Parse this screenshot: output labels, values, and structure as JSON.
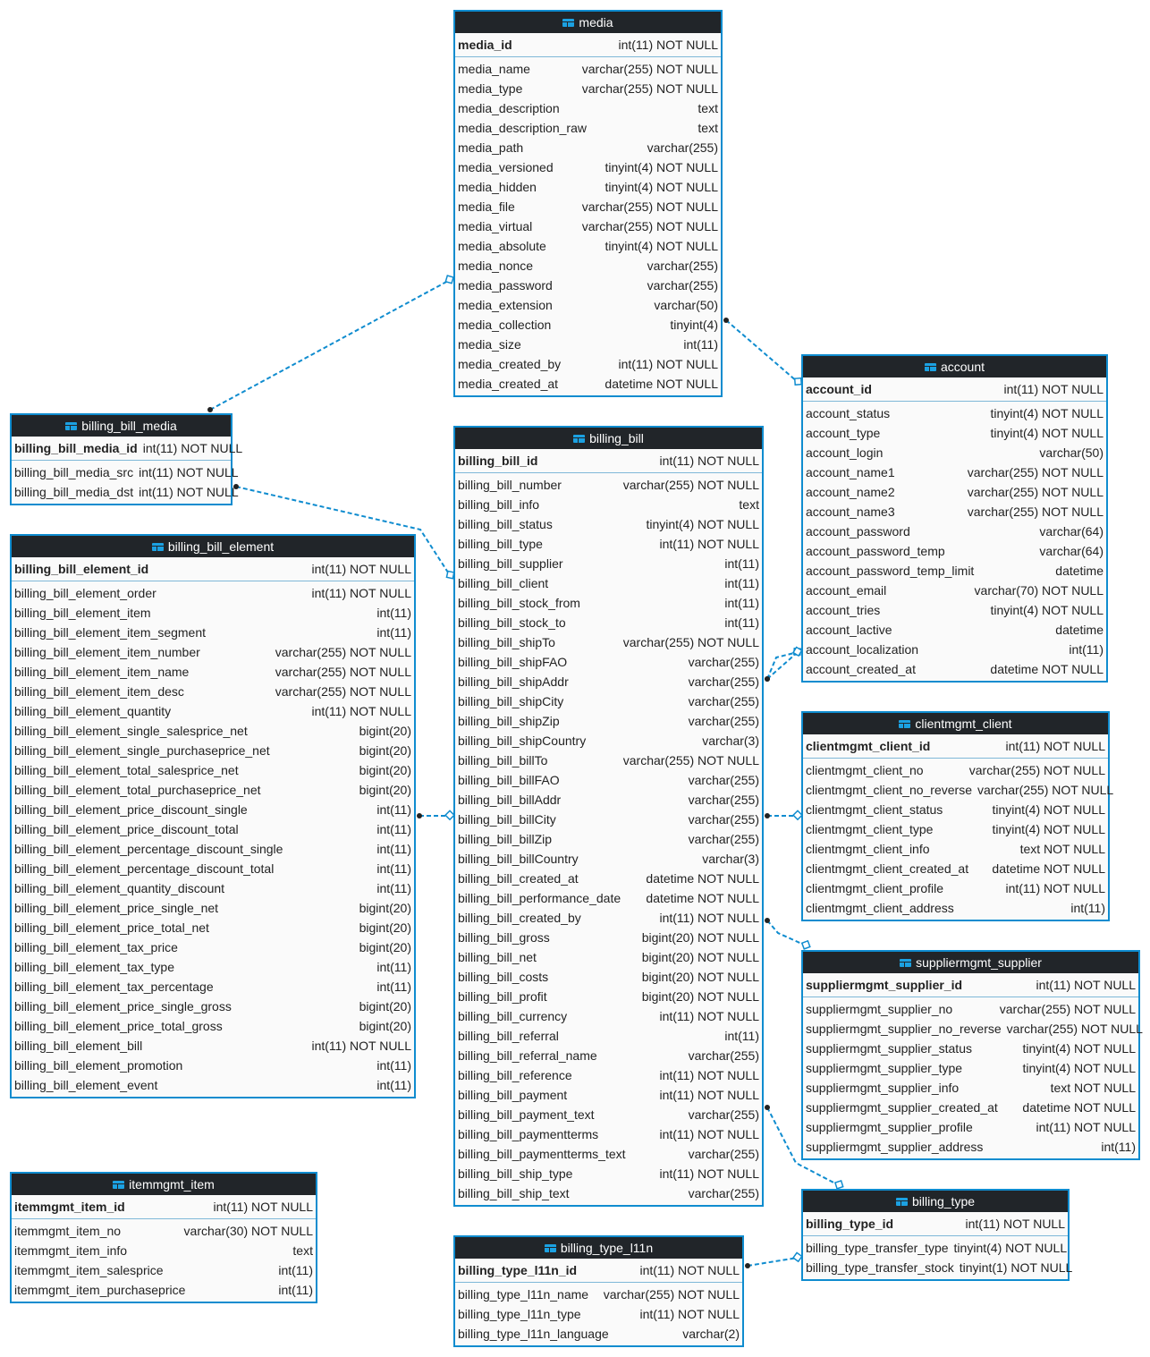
{
  "colors": {
    "header": "#212529",
    "border": "#0f8ccf",
    "link": "#0f8ccf",
    "body": "#fafafa"
  },
  "table_icon": "table-icon",
  "tables": [
    {
      "id": "media",
      "name": "media",
      "pk": [
        "media_id",
        "int(11) NOT NULL"
      ],
      "rows": [
        [
          "media_name",
          "varchar(255) NOT NULL"
        ],
        [
          "media_type",
          "varchar(255) NOT NULL"
        ],
        [
          "media_description",
          "text"
        ],
        [
          "media_description_raw",
          "text"
        ],
        [
          "media_path",
          "varchar(255)"
        ],
        [
          "media_versioned",
          "tinyint(4) NOT NULL"
        ],
        [
          "media_hidden",
          "tinyint(4) NOT NULL"
        ],
        [
          "media_file",
          "varchar(255) NOT NULL"
        ],
        [
          "media_virtual",
          "varchar(255) NOT NULL"
        ],
        [
          "media_absolute",
          "tinyint(4) NOT NULL"
        ],
        [
          "media_nonce",
          "varchar(255)"
        ],
        [
          "media_password",
          "varchar(255)"
        ],
        [
          "media_extension",
          "varchar(50)"
        ],
        [
          "media_collection",
          "tinyint(4)"
        ],
        [
          "media_size",
          "int(11)"
        ],
        [
          "media_created_by",
          "int(11) NOT NULL"
        ],
        [
          "media_created_at",
          "datetime NOT NULL"
        ]
      ]
    },
    {
      "id": "billing_bill_media",
      "name": "billing_bill_media",
      "pk": [
        "billing_bill_media_id",
        "int(11) NOT NULL"
      ],
      "rows": [
        [
          "billing_bill_media_src",
          "int(11) NOT NULL"
        ],
        [
          "billing_bill_media_dst",
          "int(11) NOT NULL"
        ]
      ]
    },
    {
      "id": "billing_bill_element",
      "name": "billing_bill_element",
      "pk": [
        "billing_bill_element_id",
        "int(11) NOT NULL"
      ],
      "rows": [
        [
          "billing_bill_element_order",
          "int(11) NOT NULL"
        ],
        [
          "billing_bill_element_item",
          "int(11)"
        ],
        [
          "billing_bill_element_item_segment",
          "int(11)"
        ],
        [
          "billing_bill_element_item_number",
          "varchar(255) NOT NULL"
        ],
        [
          "billing_bill_element_item_name",
          "varchar(255) NOT NULL"
        ],
        [
          "billing_bill_element_item_desc",
          "varchar(255) NOT NULL"
        ],
        [
          "billing_bill_element_quantity",
          "int(11) NOT NULL"
        ],
        [
          "billing_bill_element_single_salesprice_net",
          "bigint(20)"
        ],
        [
          "billing_bill_element_single_purchaseprice_net",
          "bigint(20)"
        ],
        [
          "billing_bill_element_total_salesprice_net",
          "bigint(20)"
        ],
        [
          "billing_bill_element_total_purchaseprice_net",
          "bigint(20)"
        ],
        [
          "billing_bill_element_price_discount_single",
          "int(11)"
        ],
        [
          "billing_bill_element_price_discount_total",
          "int(11)"
        ],
        [
          "billing_bill_element_percentage_discount_single",
          "int(11)"
        ],
        [
          "billing_bill_element_percentage_discount_total",
          "int(11)"
        ],
        [
          "billing_bill_element_quantity_discount",
          "int(11)"
        ],
        [
          "billing_bill_element_price_single_net",
          "bigint(20)"
        ],
        [
          "billing_bill_element_price_total_net",
          "bigint(20)"
        ],
        [
          "billing_bill_element_tax_price",
          "bigint(20)"
        ],
        [
          "billing_bill_element_tax_type",
          "int(11)"
        ],
        [
          "billing_bill_element_tax_percentage",
          "int(11)"
        ],
        [
          "billing_bill_element_price_single_gross",
          "bigint(20)"
        ],
        [
          "billing_bill_element_price_total_gross",
          "bigint(20)"
        ],
        [
          "billing_bill_element_bill",
          "int(11) NOT NULL"
        ],
        [
          "billing_bill_element_promotion",
          "int(11)"
        ],
        [
          "billing_bill_element_event",
          "int(11)"
        ]
      ]
    },
    {
      "id": "itemmgmt_item",
      "name": "itemmgmt_item",
      "pk": [
        "itemmgmt_item_id",
        "int(11) NOT NULL"
      ],
      "rows": [
        [
          "itemmgmt_item_no",
          "varchar(30) NOT NULL"
        ],
        [
          "itemmgmt_item_info",
          "text"
        ],
        [
          "itemmgmt_item_salesprice",
          "int(11)"
        ],
        [
          "itemmgmt_item_purchaseprice",
          "int(11)"
        ]
      ]
    },
    {
      "id": "billing_bill",
      "name": "billing_bill",
      "pk": [
        "billing_bill_id",
        "int(11) NOT NULL"
      ],
      "rows": [
        [
          "billing_bill_number",
          "varchar(255) NOT NULL"
        ],
        [
          "billing_bill_info",
          "text"
        ],
        [
          "billing_bill_status",
          "tinyint(4) NOT NULL"
        ],
        [
          "billing_bill_type",
          "int(11) NOT NULL"
        ],
        [
          "billing_bill_supplier",
          "int(11)"
        ],
        [
          "billing_bill_client",
          "int(11)"
        ],
        [
          "billing_bill_stock_from",
          "int(11)"
        ],
        [
          "billing_bill_stock_to",
          "int(11)"
        ],
        [
          "billing_bill_shipTo",
          "varchar(255) NOT NULL"
        ],
        [
          "billing_bill_shipFAO",
          "varchar(255)"
        ],
        [
          "billing_bill_shipAddr",
          "varchar(255)"
        ],
        [
          "billing_bill_shipCity",
          "varchar(255)"
        ],
        [
          "billing_bill_shipZip",
          "varchar(255)"
        ],
        [
          "billing_bill_shipCountry",
          "varchar(3)"
        ],
        [
          "billing_bill_billTo",
          "varchar(255) NOT NULL"
        ],
        [
          "billing_bill_billFAO",
          "varchar(255)"
        ],
        [
          "billing_bill_billAddr",
          "varchar(255)"
        ],
        [
          "billing_bill_billCity",
          "varchar(255)"
        ],
        [
          "billing_bill_billZip",
          "varchar(255)"
        ],
        [
          "billing_bill_billCountry",
          "varchar(3)"
        ],
        [
          "billing_bill_created_at",
          "datetime NOT NULL"
        ],
        [
          "billing_bill_performance_date",
          "datetime NOT NULL"
        ],
        [
          "billing_bill_created_by",
          "int(11) NOT NULL"
        ],
        [
          "billing_bill_gross",
          "bigint(20) NOT NULL"
        ],
        [
          "billing_bill_net",
          "bigint(20) NOT NULL"
        ],
        [
          "billing_bill_costs",
          "bigint(20) NOT NULL"
        ],
        [
          "billing_bill_profit",
          "bigint(20) NOT NULL"
        ],
        [
          "billing_bill_currency",
          "int(11) NOT NULL"
        ],
        [
          "billing_bill_referral",
          "int(11)"
        ],
        [
          "billing_bill_referral_name",
          "varchar(255)"
        ],
        [
          "billing_bill_reference",
          "int(11) NOT NULL"
        ],
        [
          "billing_bill_payment",
          "int(11) NOT NULL"
        ],
        [
          "billing_bill_payment_text",
          "varchar(255)"
        ],
        [
          "billing_bill_paymentterms",
          "int(11) NOT NULL"
        ],
        [
          "billing_bill_paymentterms_text",
          "varchar(255)"
        ],
        [
          "billing_bill_ship_type",
          "int(11) NOT NULL"
        ],
        [
          "billing_bill_ship_text",
          "varchar(255)"
        ]
      ]
    },
    {
      "id": "billing_type_l11n",
      "name": "billing_type_l11n",
      "pk": [
        "billing_type_l11n_id",
        "int(11) NOT NULL"
      ],
      "rows": [
        [
          "billing_type_l11n_name",
          "varchar(255) NOT NULL"
        ],
        [
          "billing_type_l11n_type",
          "int(11) NOT NULL"
        ],
        [
          "billing_type_l11n_language",
          "varchar(2)"
        ]
      ]
    },
    {
      "id": "account",
      "name": "account",
      "pk": [
        "account_id",
        "int(11) NOT NULL"
      ],
      "rows": [
        [
          "account_status",
          "tinyint(4) NOT NULL"
        ],
        [
          "account_type",
          "tinyint(4) NOT NULL"
        ],
        [
          "account_login",
          "varchar(50)"
        ],
        [
          "account_name1",
          "varchar(255) NOT NULL"
        ],
        [
          "account_name2",
          "varchar(255) NOT NULL"
        ],
        [
          "account_name3",
          "varchar(255) NOT NULL"
        ],
        [
          "account_password",
          "varchar(64)"
        ],
        [
          "account_password_temp",
          "varchar(64)"
        ],
        [
          "account_password_temp_limit",
          "datetime"
        ],
        [
          "account_email",
          "varchar(70) NOT NULL"
        ],
        [
          "account_tries",
          "tinyint(4) NOT NULL"
        ],
        [
          "account_lactive",
          "datetime"
        ],
        [
          "account_localization",
          "int(11)"
        ],
        [
          "account_created_at",
          "datetime NOT NULL"
        ]
      ]
    },
    {
      "id": "clientmgmt_client",
      "name": "clientmgmt_client",
      "pk": [
        "clientmgmt_client_id",
        "int(11) NOT NULL"
      ],
      "rows": [
        [
          "clientmgmt_client_no",
          "varchar(255) NOT NULL"
        ],
        [
          "clientmgmt_client_no_reverse",
          "varchar(255) NOT NULL"
        ],
        [
          "clientmgmt_client_status",
          "tinyint(4) NOT NULL"
        ],
        [
          "clientmgmt_client_type",
          "tinyint(4) NOT NULL"
        ],
        [
          "clientmgmt_client_info",
          "text NOT NULL"
        ],
        [
          "clientmgmt_client_created_at",
          "datetime NOT NULL"
        ],
        [
          "clientmgmt_client_profile",
          "int(11) NOT NULL"
        ],
        [
          "clientmgmt_client_address",
          "int(11)"
        ]
      ]
    },
    {
      "id": "suppliermgmt_supplier",
      "name": "suppliermgmt_supplier",
      "pk": [
        "suppliermgmt_supplier_id",
        "int(11) NOT NULL"
      ],
      "rows": [
        [
          "suppliermgmt_supplier_no",
          "varchar(255) NOT NULL"
        ],
        [
          "suppliermgmt_supplier_no_reverse",
          "varchar(255) NOT NULL"
        ],
        [
          "suppliermgmt_supplier_status",
          "tinyint(4) NOT NULL"
        ],
        [
          "suppliermgmt_supplier_type",
          "tinyint(4) NOT NULL"
        ],
        [
          "suppliermgmt_supplier_info",
          "text NOT NULL"
        ],
        [
          "suppliermgmt_supplier_created_at",
          "datetime NOT NULL"
        ],
        [
          "suppliermgmt_supplier_profile",
          "int(11) NOT NULL"
        ],
        [
          "suppliermgmt_supplier_address",
          "int(11)"
        ]
      ]
    },
    {
      "id": "billing_type",
      "name": "billing_type",
      "pk": [
        "billing_type_id",
        "int(11) NOT NULL"
      ],
      "rows": [
        [
          "billing_type_transfer_type",
          "tinyint(4) NOT NULL"
        ],
        [
          "billing_type_transfer_stock",
          "tinyint(1) NOT NULL"
        ]
      ]
    }
  ],
  "relations": [
    {
      "from": "billing_bill_media",
      "to": "media"
    },
    {
      "from": "media",
      "to": "account"
    },
    {
      "from": "billing_bill_media",
      "to": "billing_bill"
    },
    {
      "from": "billing_bill_element",
      "to": "billing_bill"
    },
    {
      "from": "billing_bill",
      "to": "account"
    },
    {
      "from": "billing_bill",
      "to": "account"
    },
    {
      "from": "billing_bill",
      "to": "clientmgmt_client"
    },
    {
      "from": "billing_bill",
      "to": "suppliermgmt_supplier"
    },
    {
      "from": "billing_bill",
      "to": "billing_type"
    },
    {
      "from": "billing_type_l11n",
      "to": "billing_type"
    }
  ]
}
